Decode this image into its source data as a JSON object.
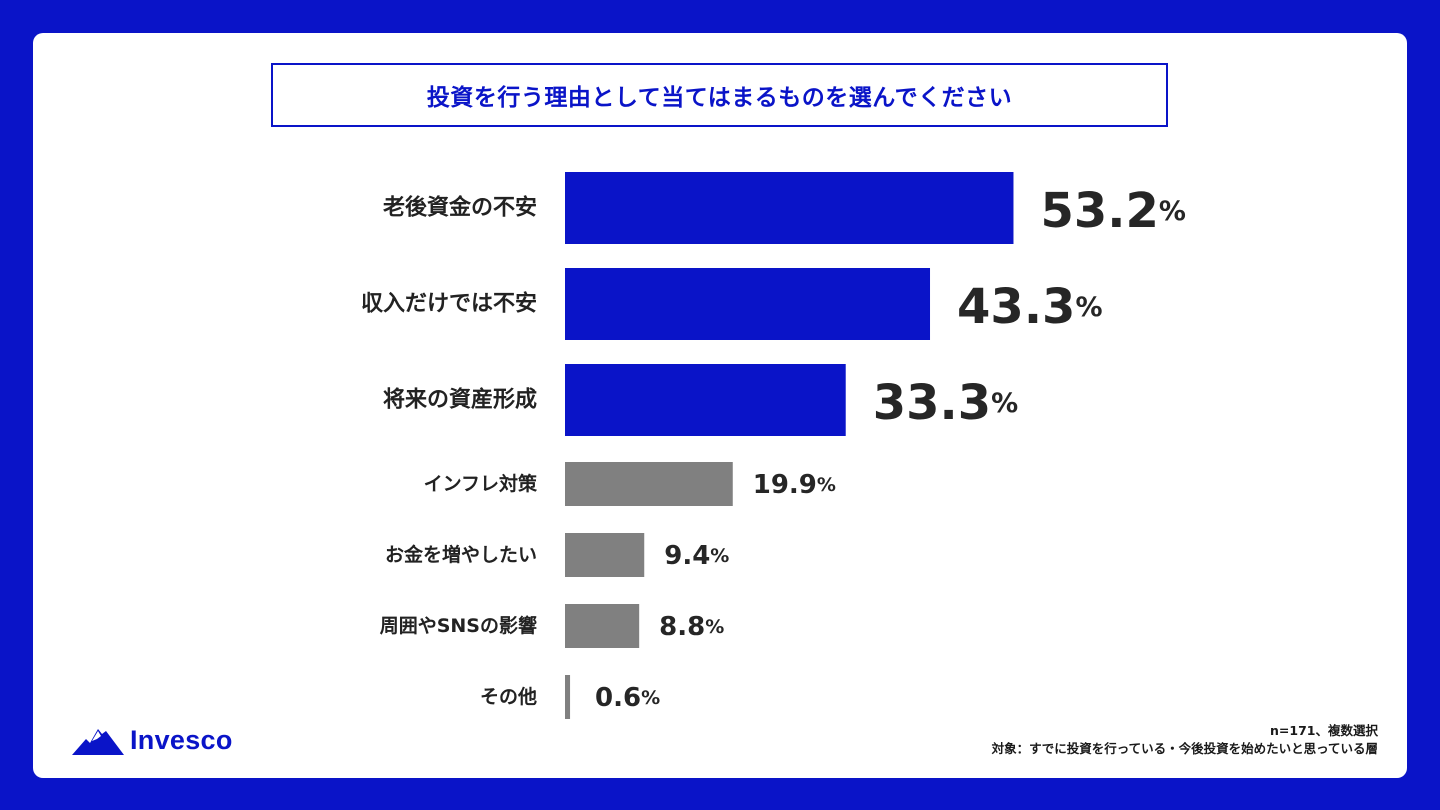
{
  "title": "投資を行う理由として当てはまるものを選んでください",
  "brand": {
    "name": "Invesco",
    "colors": {
      "accent": "#0a14c8",
      "highlight_bar": "#0a14c8",
      "other_bar": "#808080",
      "background": "#0a14c8"
    }
  },
  "footnote": {
    "sample": "n=171、複数選択",
    "target": "対象：すでに投資を行っている・今後投資を始めたいと思っている層"
  },
  "chart_data": {
    "type": "bar",
    "orientation": "horizontal",
    "title": "投資を行う理由として当てはまるものを選んでください",
    "categories": [
      "老後資金の不安",
      "収入だけでは不安",
      "将来の資産形成",
      "インフレ対策",
      "お金を増やしたい",
      "周囲やSNSの影響",
      "その他"
    ],
    "values": [
      53.2,
      43.3,
      33.3,
      19.9,
      9.4,
      8.8,
      0.6
    ],
    "value_labels": [
      "53.2",
      "43.3",
      "33.3",
      "19.9",
      "9.4",
      "8.8",
      "0.6"
    ],
    "unit": "%",
    "highlighted": [
      true,
      true,
      true,
      false,
      false,
      false,
      false
    ],
    "xlim": [
      0,
      100
    ],
    "grid": false,
    "legend": "none"
  }
}
